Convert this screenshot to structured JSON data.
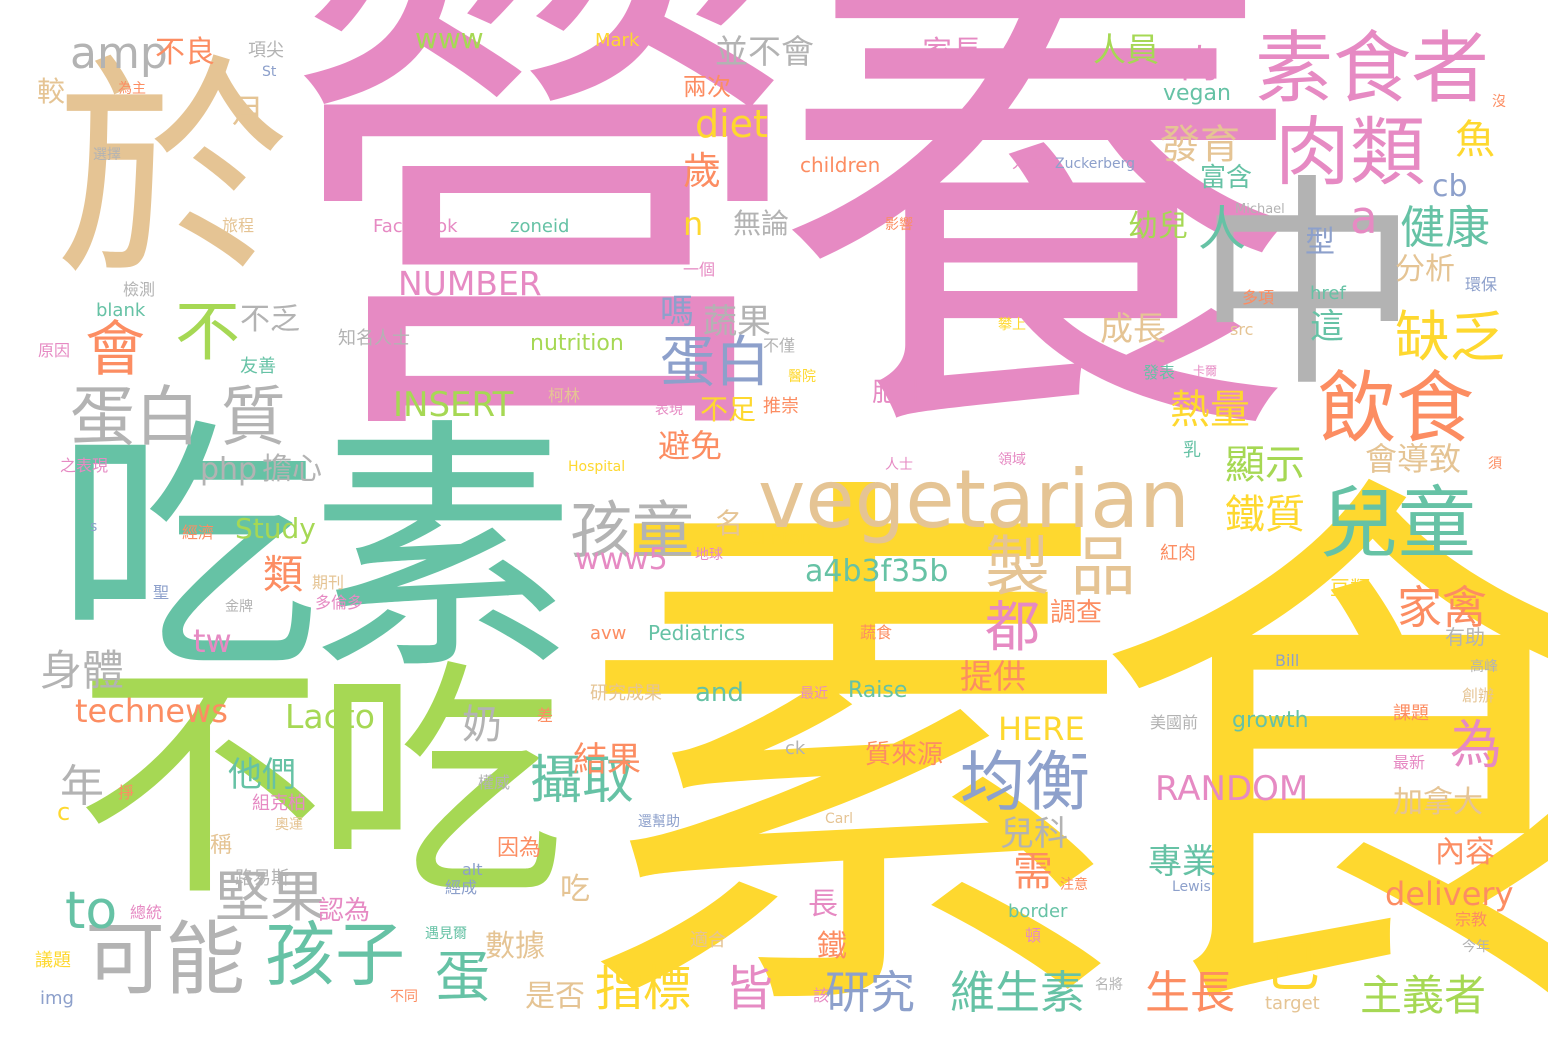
{
  "palette": {
    "pink": "#e68ac3",
    "yellow": "#fed82f",
    "green": "#a6d854",
    "teal": "#66c2a5",
    "orange": "#fc8d62",
    "blue": "#8da0cb",
    "tan": "#e5c494",
    "gray": "#b3b3b3"
  },
  "words": [
    {
      "text": "營養",
      "color": "pink"
    },
    {
      "text": "素食",
      "color": "yellow"
    },
    {
      "text": "吃素",
      "color": "teal"
    },
    {
      "text": "不吃",
      "color": "green"
    },
    {
      "text": "於",
      "color": "tan"
    },
    {
      "text": "中",
      "color": "gray"
    },
    {
      "text": "素食者",
      "color": "pink"
    },
    {
      "text": "肉類",
      "color": "pink"
    },
    {
      "text": "vegetarian",
      "color": "tan"
    },
    {
      "text": "兒童",
      "color": "teal"
    },
    {
      "text": "飲食",
      "color": "orange"
    },
    {
      "text": "孩子",
      "color": "teal"
    },
    {
      "text": "可能",
      "color": "gray"
    },
    {
      "text": "蛋白 質",
      "color": "gray"
    },
    {
      "text": "均衡",
      "color": "blue"
    },
    {
      "text": "製 品",
      "color": "tan"
    },
    {
      "text": "孩童",
      "color": "gray"
    },
    {
      "text": "會",
      "color": "orange"
    },
    {
      "text": "不",
      "color": "green"
    },
    {
      "text": "amp",
      "color": "gray"
    },
    {
      "text": "蛋白",
      "color": "blue"
    },
    {
      "text": "a",
      "color": "pink"
    },
    {
      "text": "健康",
      "color": "teal"
    },
    {
      "text": "缺乏",
      "color": "yellow"
    },
    {
      "text": "攝取",
      "color": "teal"
    },
    {
      "text": "已",
      "color": "yellow"
    },
    {
      "text": "為",
      "color": "pink"
    },
    {
      "text": "堅果",
      "color": "gray"
    },
    {
      "text": "to",
      "color": "teal"
    },
    {
      "text": "蛋",
      "color": "teal"
    },
    {
      "text": "指標",
      "color": "yellow"
    },
    {
      "text": "研究",
      "color": "blue"
    },
    {
      "text": "維生素",
      "color": "teal"
    },
    {
      "text": "生長",
      "color": "orange"
    },
    {
      "text": "主義者",
      "color": "green"
    },
    {
      "text": "家禽",
      "color": "orange"
    },
    {
      "text": "鐵質",
      "color": "yellow"
    },
    {
      "text": "發育",
      "color": "tan"
    },
    {
      "text": "熱量",
      "color": "yellow"
    },
    {
      "text": "魚",
      "color": "yellow"
    },
    {
      "text": "diet",
      "color": "yellow"
    },
    {
      "text": "人",
      "color": "teal"
    },
    {
      "text": "顯示",
      "color": "green"
    },
    {
      "text": "都",
      "color": "pink"
    },
    {
      "text": "身體",
      "color": "gray"
    },
    {
      "text": "皆",
      "color": "pink"
    },
    {
      "text": "RANDOM",
      "color": "pink"
    },
    {
      "text": "delivery",
      "color": "orange"
    },
    {
      "text": "INSERT",
      "color": "green"
    },
    {
      "text": "NUMBER",
      "color": "pink"
    },
    {
      "text": "technews",
      "color": "orange"
    },
    {
      "text": "Lacto",
      "color": "green"
    },
    {
      "text": "HERE",
      "color": "yellow"
    },
    {
      "text": "a4b3f35b",
      "color": "teal"
    },
    {
      "text": "www5",
      "color": "pink"
    },
    {
      "text": "www",
      "color": "green"
    },
    {
      "text": "並不會",
      "color": "gray"
    },
    {
      "text": "人員",
      "color": "green"
    },
    {
      "text": "肉",
      "color": "pink"
    },
    {
      "text": "家長",
      "color": "pink"
    },
    {
      "text": "不良",
      "color": "orange"
    },
    {
      "text": "月",
      "color": "tan"
    },
    {
      "text": "較",
      "color": "tan"
    },
    {
      "text": "歲",
      "color": "orange"
    },
    {
      "text": "n",
      "color": "yellow"
    },
    {
      "text": "無論",
      "color": "gray"
    },
    {
      "text": "嗎",
      "color": "blue"
    },
    {
      "text": "蔬果",
      "color": "gray"
    },
    {
      "text": "不乏",
      "color": "gray"
    },
    {
      "text": "成長",
      "color": "tan"
    },
    {
      "text": "cb",
      "color": "blue"
    },
    {
      "text": "型",
      "color": "blue"
    },
    {
      "text": "分析",
      "color": "tan"
    },
    {
      "text": "幼兒",
      "color": "green"
    },
    {
      "text": "富含",
      "color": "teal"
    },
    {
      "text": "這",
      "color": "teal"
    },
    {
      "text": "會導致",
      "color": "tan"
    },
    {
      "text": "避免",
      "color": "orange"
    },
    {
      "text": "不足",
      "color": "yellow"
    },
    {
      "text": "肥胖",
      "color": "pink"
    },
    {
      "text": "php",
      "color": "gray"
    },
    {
      "text": "擔心",
      "color": "gray"
    },
    {
      "text": "Study",
      "color": "green"
    },
    {
      "text": "類",
      "color": "orange"
    },
    {
      "text": "名",
      "color": "tan"
    },
    {
      "text": "tw",
      "color": "pink"
    },
    {
      "text": "奶",
      "color": "gray"
    },
    {
      "text": "年",
      "color": "gray"
    },
    {
      "text": "他們",
      "color": "teal"
    },
    {
      "text": "結果",
      "color": "orange"
    },
    {
      "text": "提供",
      "color": "orange"
    },
    {
      "text": "兒科",
      "color": "gray"
    },
    {
      "text": "需",
      "color": "orange"
    },
    {
      "text": "專業",
      "color": "teal"
    },
    {
      "text": "加拿大",
      "color": "tan"
    },
    {
      "text": "內容",
      "color": "orange"
    },
    {
      "text": "鐵",
      "color": "orange"
    },
    {
      "text": "長",
      "color": "pink"
    },
    {
      "text": "數據",
      "color": "tan"
    },
    {
      "text": "是否",
      "color": "tan"
    },
    {
      "text": "吃",
      "color": "tan"
    },
    {
      "text": "認為",
      "color": "pink"
    },
    {
      "text": "and",
      "color": "teal"
    },
    {
      "text": "Raise",
      "color": "teal"
    },
    {
      "text": "growth",
      "color": "teal"
    },
    {
      "text": "Pediatrics",
      "color": "teal"
    },
    {
      "text": "nutrition",
      "color": "green"
    },
    {
      "text": "vegan",
      "color": "teal"
    },
    {
      "text": "children",
      "color": "orange"
    },
    {
      "text": "Facebook",
      "color": "pink"
    },
    {
      "text": "zoneid",
      "color": "teal"
    },
    {
      "text": "blank",
      "color": "teal"
    },
    {
      "text": "Mark",
      "color": "yellow"
    },
    {
      "text": "St",
      "color": "blue"
    },
    {
      "text": "Zuckerberg",
      "color": "blue"
    },
    {
      "text": "Michael",
      "color": "gray"
    },
    {
      "text": "href",
      "color": "teal"
    },
    {
      "text": "src",
      "color": "tan"
    },
    {
      "text": "Hospital",
      "color": "yellow"
    },
    {
      "text": "Clinton",
      "color": "yellow"
    },
    {
      "text": "avw",
      "color": "orange"
    },
    {
      "text": "Bill",
      "color": "blue"
    },
    {
      "text": "ck",
      "color": "gray"
    },
    {
      "text": "Carl",
      "color": "tan"
    },
    {
      "text": "alt",
      "color": "blue"
    },
    {
      "text": "border",
      "color": "teal"
    },
    {
      "text": "Lewis",
      "color": "blue"
    },
    {
      "text": "target",
      "color": "tan"
    },
    {
      "text": "img",
      "color": "blue"
    },
    {
      "text": "c",
      "color": "yellow"
    },
    {
      "text": "s",
      "color": "blue"
    },
    {
      "text": "項尖",
      "color": "gray"
    },
    {
      "text": "為主",
      "color": "orange"
    },
    {
      "text": "兩次",
      "color": "orange"
    },
    {
      "text": "選擇",
      "color": "gray"
    },
    {
      "text": "旅程",
      "color": "tan"
    },
    {
      "text": "影響",
      "color": "orange"
    },
    {
      "text": "人生",
      "color": "pink"
    },
    {
      "text": "檢測",
      "color": "gray"
    },
    {
      "text": "一個",
      "color": "pink"
    },
    {
      "text": "多項",
      "color": "orange"
    },
    {
      "text": "環保",
      "color": "blue"
    },
    {
      "text": "原因",
      "color": "pink"
    },
    {
      "text": "知名人士",
      "color": "gray"
    },
    {
      "text": "友善",
      "color": "teal"
    },
    {
      "text": "不僅",
      "color": "gray"
    },
    {
      "text": "醫院",
      "color": "yellow"
    },
    {
      "text": "發表",
      "color": "teal"
    },
    {
      "text": "卡爾",
      "color": "pink"
    },
    {
      "text": "柯林",
      "color": "tan"
    },
    {
      "text": "表現",
      "color": "pink"
    },
    {
      "text": "推崇",
      "color": "orange"
    },
    {
      "text": "之表現",
      "color": "pink"
    },
    {
      "text": "人士",
      "color": "pink"
    },
    {
      "text": "領域",
      "color": "pink"
    },
    {
      "text": "乳",
      "color": "teal"
    },
    {
      "text": "須",
      "color": "orange"
    },
    {
      "text": "經濟",
      "color": "orange"
    },
    {
      "text": "地球",
      "color": "pink"
    },
    {
      "text": "紅肉",
      "color": "orange"
    },
    {
      "text": "期刊",
      "color": "tan"
    },
    {
      "text": "多倫多",
      "color": "pink"
    },
    {
      "text": "金牌",
      "color": "gray"
    },
    {
      "text": "豆類",
      "color": "yellow"
    },
    {
      "text": "調查",
      "color": "orange"
    },
    {
      "text": "蔬食",
      "color": "orange"
    },
    {
      "text": "有助",
      "color": "gray"
    },
    {
      "text": "研究成果",
      "color": "tan"
    },
    {
      "text": "最近",
      "color": "pink"
    },
    {
      "text": "差",
      "color": "orange"
    },
    {
      "text": "美國前",
      "color": "gray"
    },
    {
      "text": "課題",
      "color": "orange"
    },
    {
      "text": "創辦",
      "color": "tan"
    },
    {
      "text": "高峰",
      "color": "gray"
    },
    {
      "text": "最新",
      "color": "pink"
    },
    {
      "text": "質來源",
      "color": "orange"
    },
    {
      "text": "權威",
      "color": "gray"
    },
    {
      "text": "組克柏",
      "color": "pink"
    },
    {
      "text": "還幫助",
      "color": "blue"
    },
    {
      "text": "奧運",
      "color": "tan"
    },
    {
      "text": "稱",
      "color": "tan"
    },
    {
      "text": "因為",
      "color": "orange"
    },
    {
      "text": "經成",
      "color": "blue"
    },
    {
      "text": "路易斯",
      "color": "gray"
    },
    {
      "text": "總統",
      "color": "pink"
    },
    {
      "text": "遇見爾",
      "color": "teal"
    },
    {
      "text": "注意",
      "color": "orange"
    },
    {
      "text": "宗教",
      "color": "orange"
    },
    {
      "text": "今年",
      "color": "gray"
    },
    {
      "text": "適合",
      "color": "tan"
    },
    {
      "text": "頓",
      "color": "pink"
    },
    {
      "text": "名將",
      "color": "gray"
    },
    {
      "text": "議題",
      "color": "yellow"
    },
    {
      "text": "不同",
      "color": "orange"
    },
    {
      "text": "該",
      "color": "pink"
    },
    {
      "text": "掙",
      "color": "orange"
    },
    {
      "text": "聖",
      "color": "blue"
    },
    {
      "text": "沒",
      "color": "orange"
    },
    {
      "text": "攀上",
      "color": "yellow"
    }
  ]
}
